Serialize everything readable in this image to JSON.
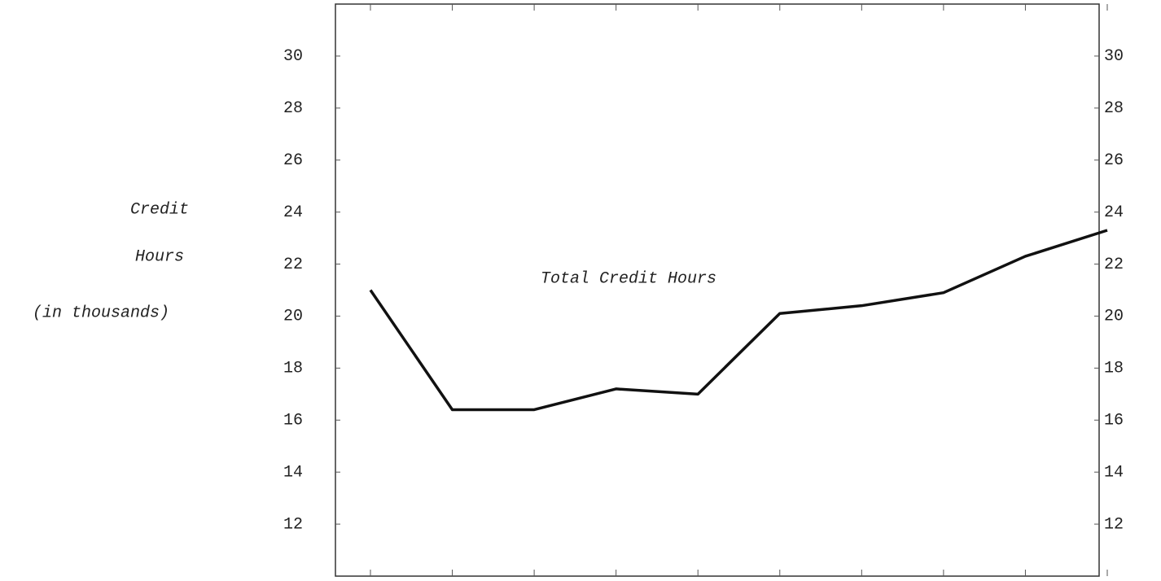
{
  "chart_data": {
    "type": "line",
    "ylabel": [
      "Credit",
      "Hours",
      "(in thousands)"
    ],
    "annotation": "Total Credit Hours",
    "categories": [
      null,
      null,
      null,
      null,
      null,
      null,
      null,
      null,
      null,
      null
    ],
    "series": [
      {
        "name": "Total Credit Hours",
        "color": "#111111",
        "values": [
          21.0,
          16.4,
          16.4,
          17.2,
          17.0,
          20.1,
          20.4,
          20.9,
          22.3,
          23.3
        ]
      }
    ],
    "ylim": [
      10,
      32
    ],
    "yticks": [
      12,
      14,
      16,
      18,
      20,
      22,
      24,
      26,
      28,
      30
    ],
    "y2lim": [
      10,
      32
    ],
    "y2ticks": [
      12,
      14,
      16,
      18,
      20,
      22,
      24,
      26,
      28,
      30
    ],
    "grid": false
  }
}
